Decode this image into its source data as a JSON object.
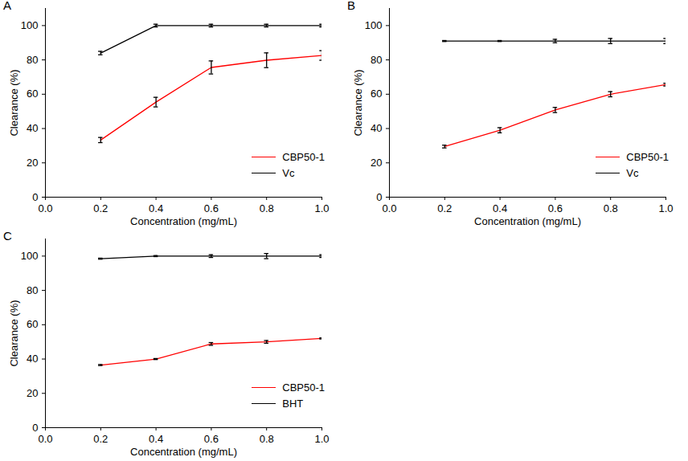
{
  "chart_data": [
    {
      "type": "line",
      "title": "A",
      "x_label": "Concentration (mg/mL)",
      "y_label": "Clearance (%)",
      "x": [
        0.2,
        0.4,
        0.6,
        0.8,
        1.0
      ],
      "series": [
        {
          "name": "CBP50-1",
          "color": "#ff0000",
          "values": [
            33.3,
            55.4,
            75.6,
            79.8,
            82.6
          ],
          "errors": [
            1.5,
            2.8,
            3.8,
            4.3,
            2.8
          ]
        },
        {
          "name": "Vc",
          "color": "#000000",
          "values": [
            84.0,
            100.0,
            100.0,
            100.0,
            100.0
          ],
          "errors": [
            1.0,
            0.8,
            0.8,
            0.8,
            0.8
          ]
        }
      ],
      "xlim": [
        0,
        1.0
      ],
      "xticks": [
        {
          "value": 0,
          "label": "0.0"
        },
        0.2,
        0.4,
        0.6,
        0.8,
        {
          "value": 1.0,
          "label": "1.0"
        }
      ],
      "ylim": [
        0,
        110
      ],
      "yticks": [
        0,
        20,
        40,
        60,
        80,
        100
      ],
      "legend": "lower right",
      "grid": false
    },
    {
      "type": "line",
      "title": "B",
      "x_label": "Concentration (mg/mL)",
      "y_label": "Clearance (%)",
      "x": [
        0.2,
        0.4,
        0.6,
        0.8,
        1.0
      ],
      "series": [
        {
          "name": "CBP50-1",
          "color": "#ff0000",
          "values": [
            29.5,
            39.0,
            50.8,
            60.0,
            65.6
          ],
          "errors": [
            0.8,
            1.5,
            1.5,
            1.5,
            0.8
          ]
        },
        {
          "name": "Vc",
          "color": "#000000",
          "values": [
            91.0,
            91.0,
            91.0,
            91.0,
            91.0
          ],
          "errors": [
            0.3,
            0.3,
            1.0,
            1.5,
            1.5
          ]
        }
      ],
      "xlim": [
        0,
        1.0
      ],
      "xticks": [
        {
          "value": 0,
          "label": "0.0"
        },
        0.2,
        0.4,
        0.6,
        0.8,
        {
          "value": 1.0,
          "label": "1.0"
        }
      ],
      "ylim": [
        0,
        110
      ],
      "yticks": [
        0,
        20,
        40,
        60,
        80,
        100
      ],
      "legend": "lower right",
      "grid": false
    },
    {
      "type": "line",
      "title": "C",
      "x_label": "Concentration (mg/mL)",
      "y_label": "Clearance (%)",
      "x": [
        0.2,
        0.4,
        0.6,
        0.8,
        1.0
      ],
      "series": [
        {
          "name": "CBP50-1",
          "color": "#ff0000",
          "values": [
            36.5,
            40.0,
            48.8,
            50.0,
            52.0
          ],
          "errors": [
            0.3,
            0.3,
            0.8,
            0.8,
            0.3
          ]
        },
        {
          "name": "BHT",
          "color": "#000000",
          "values": [
            98.5,
            100.0,
            100.0,
            100.0,
            100.0
          ],
          "errors": [
            0.3,
            0.3,
            0.8,
            1.5,
            0.8
          ]
        }
      ],
      "xlim": [
        0,
        1.0
      ],
      "xticks": [
        {
          "value": 0,
          "label": "0.0"
        },
        0.2,
        0.4,
        0.6,
        0.8,
        {
          "value": 1.0,
          "label": "1.0"
        }
      ],
      "ylim": [
        0,
        110
      ],
      "yticks": [
        0,
        20,
        40,
        60,
        80,
        100
      ],
      "legend": "lower right",
      "grid": false
    }
  ]
}
